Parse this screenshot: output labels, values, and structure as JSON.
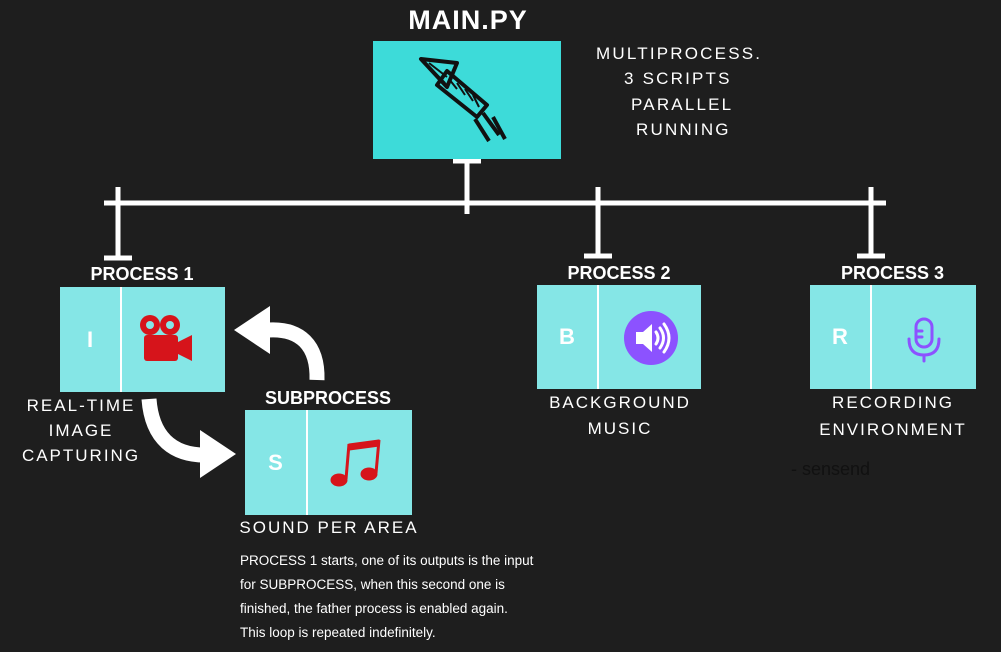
{
  "main": {
    "title": "MAIN.PY",
    "icon": "rocket-icon",
    "note": [
      "MULTIPROCESS.",
      "3 SCRIPTS",
      "PARALLEL",
      "RUNNING"
    ]
  },
  "processes": [
    {
      "title": "PROCESS 1",
      "letter": "I",
      "icon": "video-camera-icon",
      "icon_color": "#d6141b",
      "caption": [
        "REAL-TIME",
        "IMAGE",
        "CAPTURING"
      ]
    },
    {
      "title": "PROCESS 2",
      "letter": "B",
      "icon": "speaker-icon",
      "icon_color": "#8c52ff",
      "caption": [
        "BACKGROUND",
        "MUSIC"
      ]
    },
    {
      "title": "PROCESS 3",
      "letter": "R",
      "icon": "microphone-icon",
      "icon_color": "#8c52ff",
      "caption": [
        "RECORDING",
        "ENVIRONMENT"
      ]
    }
  ],
  "subprocess": {
    "title": "SUBPROCESS",
    "letter": "S",
    "icon": "music-notes-icon",
    "icon_color": "#d6141b",
    "caption": "SOUND PER AREA"
  },
  "description": [
    "PROCESS 1 starts, one of its outputs is the input",
    "for SUBPROCESS, when this second one is",
    "finished, the father process is enabled again.",
    "This loop is repeated indefinitely."
  ],
  "annotation": "- sensend",
  "colors": {
    "background": "#1e1e1e",
    "main_box": "#3ddbd9",
    "card": "#85e6e6",
    "red_icon": "#d6141b",
    "purple_icon": "#8c52ff"
  }
}
